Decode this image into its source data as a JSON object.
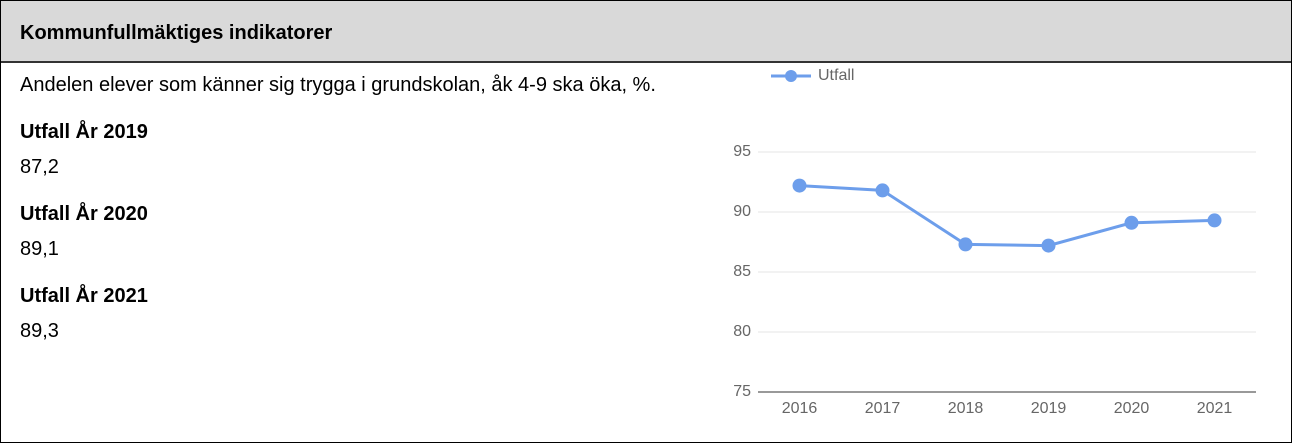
{
  "header": {
    "title": "Kommunfullmäktiges indikatorer"
  },
  "indicator": {
    "description": "Andelen elever som känner sig trygga i grundskolan, åk 4-9 ska öka, %.",
    "results": [
      {
        "label": "Utfall År 2019",
        "value": "87,2"
      },
      {
        "label": "Utfall År 2020",
        "value": "89,1"
      },
      {
        "label": "Utfall År 2021",
        "value": "89,3"
      }
    ]
  },
  "chart_data": {
    "type": "line",
    "categories": [
      "2016",
      "2017",
      "2018",
      "2019",
      "2020",
      "2021"
    ],
    "series": [
      {
        "name": "Utfall",
        "color": "#6d9eeb",
        "values": [
          92.2,
          91.8,
          87.3,
          87.2,
          89.1,
          89.3
        ]
      }
    ],
    "ylim": [
      75,
      95
    ],
    "yticks": [
      75,
      80,
      85,
      90,
      95
    ],
    "grid": true,
    "legend": "top-left"
  }
}
